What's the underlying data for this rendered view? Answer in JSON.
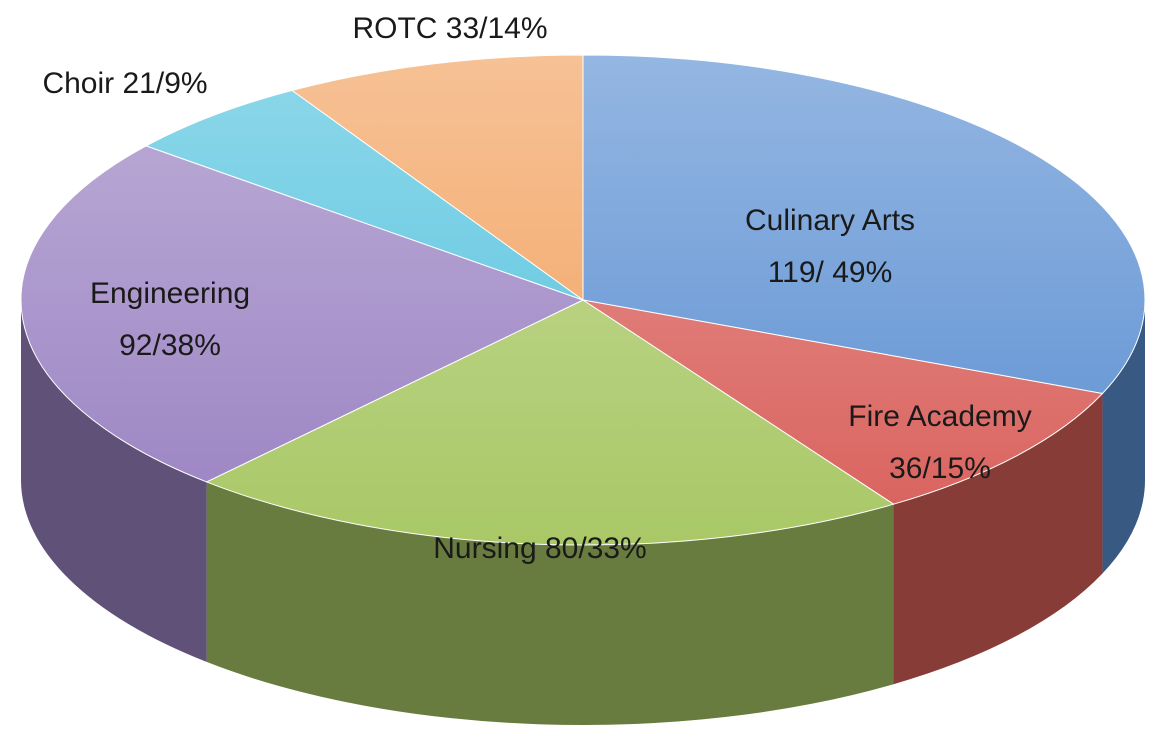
{
  "chart_data": {
    "type": "pie3d",
    "categories": [
      "Culinary Arts",
      "Fire Academy",
      "Nursing",
      "Engineering",
      "Choir",
      "ROTC"
    ],
    "values": [
      119,
      36,
      80,
      92,
      21,
      33
    ],
    "value_labels": [
      "119/ 49%",
      "36/15%",
      "80/33%",
      "92/38%",
      "21/9%",
      "33/14%"
    ],
    "colors": [
      "#5b8fd2",
      "#d9605b",
      "#a9c866",
      "#9a82c2",
      "#52c2de",
      "#f2a05c"
    ]
  }
}
